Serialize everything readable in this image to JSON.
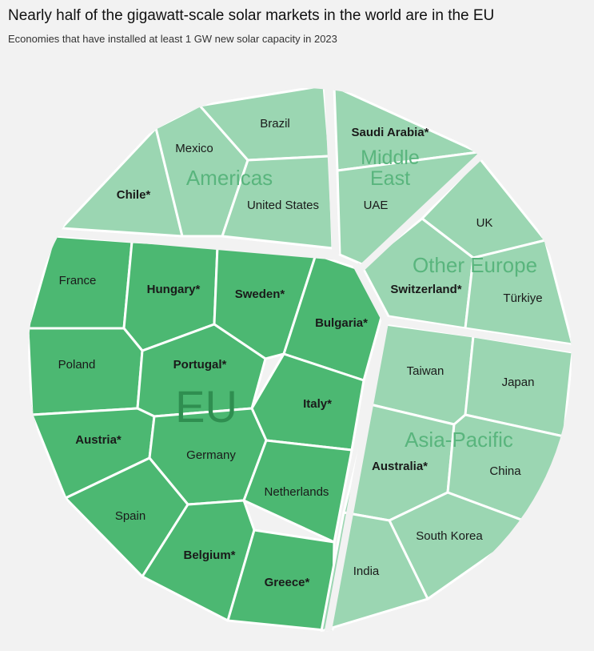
{
  "title": "Nearly half of the gigawatt-scale solar markets in the world are in the EU",
  "subtitle": "Economies that have installed at least 1 GW new solar capacity in 2023",
  "colors": {
    "background": "#f2f2f2",
    "eu": "#4cb872",
    "other": "#9bd6b2",
    "cell_border": "#ffffff",
    "group_label_eu": "#2f8e50",
    "group_label_other": "#59b57d"
  },
  "groups": [
    {
      "key": "eu",
      "label": "EU",
      "style": "eu"
    },
    {
      "key": "americas",
      "label": "Americas",
      "style": "other"
    },
    {
      "key": "middle_east",
      "label": "Middle East",
      "lines": [
        "Middle",
        "East"
      ],
      "style": "other"
    },
    {
      "key": "other_europe",
      "label": "Other Europe",
      "style": "other"
    },
    {
      "key": "asia_pacific",
      "label": "Asia-Pacific",
      "style": "other"
    }
  ],
  "cells": [
    {
      "name": "Chile*",
      "group": "americas",
      "bold": true
    },
    {
      "name": "Mexico",
      "group": "americas",
      "bold": false
    },
    {
      "name": "Brazil",
      "group": "americas",
      "bold": false
    },
    {
      "name": "United States",
      "group": "americas",
      "bold": false
    },
    {
      "name": "Saudi Arabia*",
      "group": "middle_east",
      "bold": true
    },
    {
      "name": "UAE",
      "group": "middle_east",
      "bold": false
    },
    {
      "name": "UK",
      "group": "other_europe",
      "bold": false
    },
    {
      "name": "Switzerland*",
      "group": "other_europe",
      "bold": true
    },
    {
      "name": "Türkiye",
      "group": "other_europe",
      "bold": false
    },
    {
      "name": "France",
      "group": "eu",
      "bold": false
    },
    {
      "name": "Hungary*",
      "group": "eu",
      "bold": true
    },
    {
      "name": "Sweden*",
      "group": "eu",
      "bold": true
    },
    {
      "name": "Bulgaria*",
      "group": "eu",
      "bold": true
    },
    {
      "name": "Poland",
      "group": "eu",
      "bold": false
    },
    {
      "name": "Portugal*",
      "group": "eu",
      "bold": true
    },
    {
      "name": "Italy*",
      "group": "eu",
      "bold": true
    },
    {
      "name": "Austria*",
      "group": "eu",
      "bold": true
    },
    {
      "name": "Germany",
      "group": "eu",
      "bold": false
    },
    {
      "name": "Netherlands",
      "group": "eu",
      "bold": false
    },
    {
      "name": "Spain",
      "group": "eu",
      "bold": false
    },
    {
      "name": "Belgium*",
      "group": "eu",
      "bold": true
    },
    {
      "name": "Greece*",
      "group": "eu",
      "bold": true
    },
    {
      "name": "Taiwan",
      "group": "asia_pacific",
      "bold": false
    },
    {
      "name": "Japan",
      "group": "asia_pacific",
      "bold": false
    },
    {
      "name": "Australia*",
      "group": "asia_pacific",
      "bold": true
    },
    {
      "name": "China",
      "group": "asia_pacific",
      "bold": false
    },
    {
      "name": "South Korea",
      "group": "asia_pacific",
      "bold": false
    },
    {
      "name": "India",
      "group": "asia_pacific",
      "bold": false
    }
  ]
}
